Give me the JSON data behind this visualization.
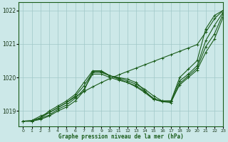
{
  "title": "Graphe pression niveau de la mer (hPa)",
  "bg_color": "#cce8e8",
  "grid_color": "#a0c8c8",
  "line_color": "#1a5c1a",
  "xlim": [
    -0.5,
    23
  ],
  "ylim": [
    1018.55,
    1022.25
  ],
  "yticks": [
    1019,
    1020,
    1021,
    1022
  ],
  "xticks": [
    0,
    1,
    2,
    3,
    4,
    5,
    6,
    7,
    8,
    9,
    10,
    11,
    12,
    13,
    14,
    15,
    16,
    17,
    18,
    19,
    20,
    21,
    22,
    23
  ],
  "lines": [
    {
      "y": [
        1018.7,
        1018.72,
        1018.85,
        1018.95,
        1019.1,
        1019.25,
        1019.42,
        1019.58,
        1019.72,
        1019.85,
        1019.97,
        1020.08,
        1020.18,
        1020.28,
        1020.38,
        1020.48,
        1020.58,
        1020.68,
        1020.78,
        1020.88,
        1020.98,
        1021.35,
        1021.75,
        1022.0
      ]
    },
    {
      "y": [
        1018.7,
        1018.7,
        1018.8,
        1019.0,
        1019.15,
        1019.3,
        1019.5,
        1019.85,
        1020.2,
        1020.2,
        1020.05,
        1020.0,
        1019.95,
        1019.85,
        1019.6,
        1019.35,
        1019.3,
        1019.3,
        1020.0,
        1020.25,
        1020.5,
        1021.45,
        1021.85,
        1022.0
      ]
    },
    {
      "y": [
        1018.7,
        1018.7,
        1018.8,
        1018.95,
        1019.1,
        1019.25,
        1019.45,
        1019.75,
        1020.15,
        1020.15,
        1020.05,
        1019.98,
        1019.9,
        1019.8,
        1019.65,
        1019.45,
        1019.3,
        1019.3,
        1019.9,
        1020.1,
        1020.35,
        1021.1,
        1021.55,
        1021.95
      ]
    },
    {
      "y": [
        1018.7,
        1018.7,
        1018.78,
        1018.88,
        1019.05,
        1019.18,
        1019.38,
        1019.65,
        1020.1,
        1020.1,
        1020.0,
        1019.92,
        1019.85,
        1019.75,
        1019.58,
        1019.38,
        1019.28,
        1019.25,
        1019.82,
        1020.05,
        1020.28,
        1020.92,
        1021.3,
        1021.9
      ]
    },
    {
      "y": [
        1018.7,
        1018.7,
        1018.75,
        1018.85,
        1019.0,
        1019.12,
        1019.3,
        1019.6,
        1020.18,
        1020.18,
        1020.05,
        1019.95,
        1019.85,
        1019.72,
        1019.55,
        1019.35,
        1019.28,
        1019.28,
        1019.78,
        1020.0,
        1020.22,
        1020.75,
        1021.15,
        1021.8
      ]
    }
  ],
  "marker": "+",
  "marker_size": 3,
  "line_width": 0.8
}
